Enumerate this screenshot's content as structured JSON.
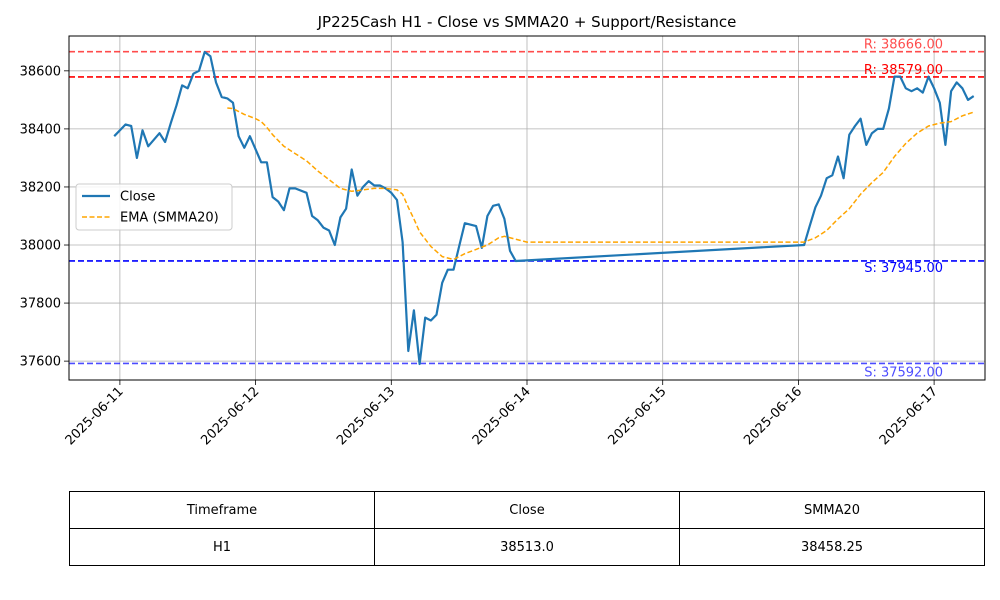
{
  "chart_data": {
    "type": "line",
    "title": "JP225Cash H1 - Close vs SMMA20 + Support/Resistance",
    "xlabel": "",
    "ylabel": "",
    "x_tick_labels": [
      "2025-06-11",
      "2025-06-12",
      "2025-06-13",
      "2025-06-14",
      "2025-06-15",
      "2025-06-16",
      "2025-06-17"
    ],
    "y_ticks": [
      37600,
      37800,
      38000,
      38200,
      38400,
      38600
    ],
    "xlim": [
      "2025-06-10T15:00",
      "2025-06-17T09:00"
    ],
    "ylim": [
      37535,
      38720
    ],
    "grid": true,
    "legend_position": "center-left",
    "series": [
      {
        "name": "Close",
        "color": "#1f77b4",
        "style": "solid",
        "points": [
          [
            "2025-06-10T23:00",
            38375
          ],
          [
            "2025-06-11T01:00",
            38415
          ],
          [
            "2025-06-11T02:00",
            38410
          ],
          [
            "2025-06-11T03:00",
            38300
          ],
          [
            "2025-06-11T04:00",
            38395
          ],
          [
            "2025-06-11T05:00",
            38340
          ],
          [
            "2025-06-11T07:00",
            38385
          ],
          [
            "2025-06-11T08:00",
            38355
          ],
          [
            "2025-06-11T09:00",
            38420
          ],
          [
            "2025-06-11T10:00",
            38480
          ],
          [
            "2025-06-11T11:00",
            38550
          ],
          [
            "2025-06-11T12:00",
            38540
          ],
          [
            "2025-06-11T13:00",
            38590
          ],
          [
            "2025-06-11T14:00",
            38600
          ],
          [
            "2025-06-11T15:00",
            38665
          ],
          [
            "2025-06-11T16:00",
            38650
          ],
          [
            "2025-06-11T17:00",
            38560
          ],
          [
            "2025-06-11T18:00",
            38510
          ],
          [
            "2025-06-11T19:00",
            38505
          ],
          [
            "2025-06-11T20:00",
            38490
          ],
          [
            "2025-06-11T21:00",
            38375
          ],
          [
            "2025-06-11T22:00",
            38335
          ],
          [
            "2025-06-11T23:00",
            38375
          ],
          [
            "2025-06-12T01:00",
            38285
          ],
          [
            "2025-06-12T02:00",
            38285
          ],
          [
            "2025-06-12T03:00",
            38165
          ],
          [
            "2025-06-12T04:00",
            38150
          ],
          [
            "2025-06-12T05:00",
            38120
          ],
          [
            "2025-06-12T06:00",
            38195
          ],
          [
            "2025-06-12T07:00",
            38195
          ],
          [
            "2025-06-12T09:00",
            38180
          ],
          [
            "2025-06-12T10:00",
            38100
          ],
          [
            "2025-06-12T11:00",
            38085
          ],
          [
            "2025-06-12T12:00",
            38060
          ],
          [
            "2025-06-12T13:00",
            38050
          ],
          [
            "2025-06-12T14:00",
            38000
          ],
          [
            "2025-06-12T15:00",
            38095
          ],
          [
            "2025-06-12T16:00",
            38125
          ],
          [
            "2025-06-12T17:00",
            38260
          ],
          [
            "2025-06-12T18:00",
            38170
          ],
          [
            "2025-06-12T19:00",
            38200
          ],
          [
            "2025-06-12T20:00",
            38220
          ],
          [
            "2025-06-12T21:00",
            38205
          ],
          [
            "2025-06-12T22:00",
            38205
          ],
          [
            "2025-06-12T23:00",
            38195
          ],
          [
            "2025-06-13T00:00",
            38180
          ],
          [
            "2025-06-13T01:00",
            38155
          ],
          [
            "2025-06-13T02:00",
            38010
          ],
          [
            "2025-06-13T03:00",
            37635
          ],
          [
            "2025-06-13T04:00",
            37775
          ],
          [
            "2025-06-13T05:00",
            37590
          ],
          [
            "2025-06-13T06:00",
            37750
          ],
          [
            "2025-06-13T07:00",
            37740
          ],
          [
            "2025-06-13T08:00",
            37760
          ],
          [
            "2025-06-13T09:00",
            37870
          ],
          [
            "2025-06-13T10:00",
            37915
          ],
          [
            "2025-06-13T11:00",
            37915
          ],
          [
            "2025-06-13T12:00",
            37995
          ],
          [
            "2025-06-13T13:00",
            38075
          ],
          [
            "2025-06-13T15:00",
            38065
          ],
          [
            "2025-06-13T16:00",
            37990
          ],
          [
            "2025-06-13T17:00",
            38100
          ],
          [
            "2025-06-13T18:00",
            38135
          ],
          [
            "2025-06-13T19:00",
            38140
          ],
          [
            "2025-06-13T20:00",
            38090
          ],
          [
            "2025-06-13T21:00",
            37980
          ],
          [
            "2025-06-13T22:00",
            37945
          ],
          [
            "2025-06-16T01:00",
            38000
          ],
          [
            "2025-06-16T02:00",
            38065
          ],
          [
            "2025-06-16T03:00",
            38130
          ],
          [
            "2025-06-16T04:00",
            38170
          ],
          [
            "2025-06-16T05:00",
            38230
          ],
          [
            "2025-06-16T06:00",
            38240
          ],
          [
            "2025-06-16T07:00",
            38305
          ],
          [
            "2025-06-16T08:00",
            38230
          ],
          [
            "2025-06-16T09:00",
            38380
          ],
          [
            "2025-06-16T10:00",
            38410
          ],
          [
            "2025-06-16T11:00",
            38435
          ],
          [
            "2025-06-16T12:00",
            38345
          ],
          [
            "2025-06-16T13:00",
            38385
          ],
          [
            "2025-06-16T14:00",
            38400
          ],
          [
            "2025-06-16T15:00",
            38400
          ],
          [
            "2025-06-16T16:00",
            38470
          ],
          [
            "2025-06-16T17:00",
            38580
          ],
          [
            "2025-06-16T18:00",
            38580
          ],
          [
            "2025-06-16T19:00",
            38540
          ],
          [
            "2025-06-16T20:00",
            38530
          ],
          [
            "2025-06-16T21:00",
            38540
          ],
          [
            "2025-06-16T22:00",
            38525
          ],
          [
            "2025-06-16T23:00",
            38580
          ],
          [
            "2025-06-17T00:00",
            38540
          ],
          [
            "2025-06-17T01:00",
            38490
          ],
          [
            "2025-06-17T02:00",
            38345
          ],
          [
            "2025-06-17T03:00",
            38530
          ],
          [
            "2025-06-17T04:00",
            38560
          ],
          [
            "2025-06-17T05:00",
            38540
          ],
          [
            "2025-06-17T06:00",
            38500
          ],
          [
            "2025-06-17T07:00",
            38513
          ]
        ]
      },
      {
        "name": "EMA (SMMA20)",
        "color": "#ffa500",
        "style": "dashed",
        "points": [
          [
            "2025-06-11T19:00",
            38472
          ],
          [
            "2025-06-11T20:00",
            38470
          ],
          [
            "2025-06-11T22:00",
            38450
          ],
          [
            "2025-06-12T00:00",
            38435
          ],
          [
            "2025-06-12T01:00",
            38425
          ],
          [
            "2025-06-12T02:00",
            38405
          ],
          [
            "2025-06-12T03:00",
            38380
          ],
          [
            "2025-06-12T05:00",
            38340
          ],
          [
            "2025-06-12T07:00",
            38315
          ],
          [
            "2025-06-12T09:00",
            38290
          ],
          [
            "2025-06-12T11:00",
            38255
          ],
          [
            "2025-06-12T13:00",
            38225
          ],
          [
            "2025-06-12T15:00",
            38195
          ],
          [
            "2025-06-12T17:00",
            38185
          ],
          [
            "2025-06-12T19:00",
            38190
          ],
          [
            "2025-06-12T21:00",
            38195
          ],
          [
            "2025-06-12T23:00",
            38195
          ],
          [
            "2025-06-13T01:00",
            38190
          ],
          [
            "2025-06-13T02:00",
            38175
          ],
          [
            "2025-06-13T03:00",
            38130
          ],
          [
            "2025-06-13T04:00",
            38090
          ],
          [
            "2025-06-13T05:00",
            38045
          ],
          [
            "2025-06-13T07:00",
            37995
          ],
          [
            "2025-06-13T09:00",
            37960
          ],
          [
            "2025-06-13T11:00",
            37950
          ],
          [
            "2025-06-13T13:00",
            37970
          ],
          [
            "2025-06-13T15:00",
            37985
          ],
          [
            "2025-06-13T17:00",
            38000
          ],
          [
            "2025-06-13T19:00",
            38025
          ],
          [
            "2025-06-13T20:00",
            38030
          ],
          [
            "2025-06-13T22:00",
            38020
          ],
          [
            "2025-06-14T00:00",
            38010
          ],
          [
            "2025-06-16T01:00",
            38010
          ],
          [
            "2025-06-16T03:00",
            38025
          ],
          [
            "2025-06-16T05:00",
            38050
          ],
          [
            "2025-06-16T07:00",
            38090
          ],
          [
            "2025-06-16T09:00",
            38125
          ],
          [
            "2025-06-16T11:00",
            38175
          ],
          [
            "2025-06-16T13:00",
            38215
          ],
          [
            "2025-06-16T15:00",
            38250
          ],
          [
            "2025-06-16T17:00",
            38305
          ],
          [
            "2025-06-16T19:00",
            38350
          ],
          [
            "2025-06-16T21:00",
            38385
          ],
          [
            "2025-06-16T23:00",
            38410
          ],
          [
            "2025-06-17T01:00",
            38420
          ],
          [
            "2025-06-17T03:00",
            38425
          ],
          [
            "2025-06-17T05:00",
            38445
          ],
          [
            "2025-06-17T07:00",
            38458
          ]
        ]
      }
    ],
    "levels": [
      {
        "label": "R: 38666.00",
        "value": 38666,
        "color": "#ff0000",
        "alpha": 0.7
      },
      {
        "label": "R: 38579.00",
        "value": 38579,
        "color": "#ff0000",
        "alpha": 1.0
      },
      {
        "label": "S: 37945.00",
        "value": 37945,
        "color": "#0000ff",
        "alpha": 1.0
      },
      {
        "label": "S: 37592.00",
        "value": 37592,
        "color": "#0000ff",
        "alpha": 0.7
      }
    ]
  },
  "table": {
    "headers": [
      "Timeframe",
      "Close",
      "SMMA20"
    ],
    "rows": [
      [
        "H1",
        "38513.0",
        "38458.25"
      ]
    ]
  }
}
